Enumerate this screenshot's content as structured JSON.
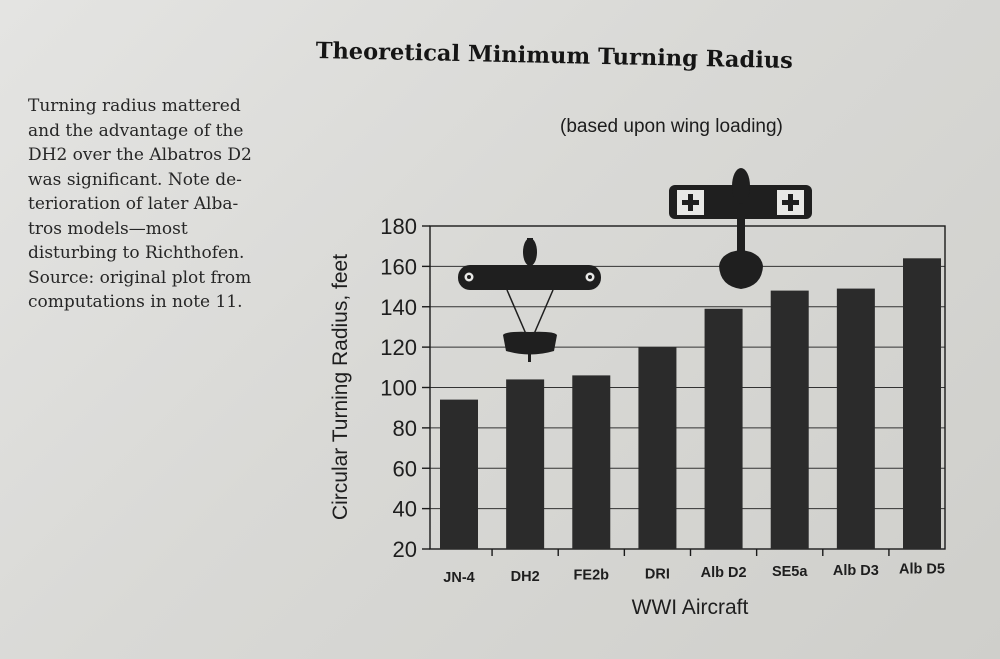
{
  "caption": {
    "lines": [
      "Turning radius mattered",
      "and the advantage of the",
      "DH2 over the Albatros D2",
      "was significant. Note de-",
      "terioration of later Alba-",
      "tros models—most",
      "disturbing to Richthofen.",
      "Source: original plot from",
      "computations in note 11."
    ]
  },
  "chart_data": {
    "type": "bar",
    "title": "Theoretical Minimum Turning Radius",
    "subtitle": "(based upon wing loading)",
    "xlabel": "WWI Aircraft",
    "ylabel": "Circular Turning Radius, feet",
    "categories": [
      "JN-4",
      "DH2",
      "FE2b",
      "DRI",
      "Alb D2",
      "SE5a",
      "Alb D3",
      "Alb D5"
    ],
    "values": [
      94,
      104,
      106,
      120,
      139,
      148,
      149,
      164
    ],
    "ylim": [
      20,
      180
    ],
    "yticks": [
      20,
      40,
      60,
      80,
      100,
      120,
      140,
      160,
      180
    ],
    "grid": "horizontal",
    "bar_color": "#2b2b2b",
    "illustrations": [
      "biplane-icon",
      "german-biplane-icon"
    ]
  }
}
